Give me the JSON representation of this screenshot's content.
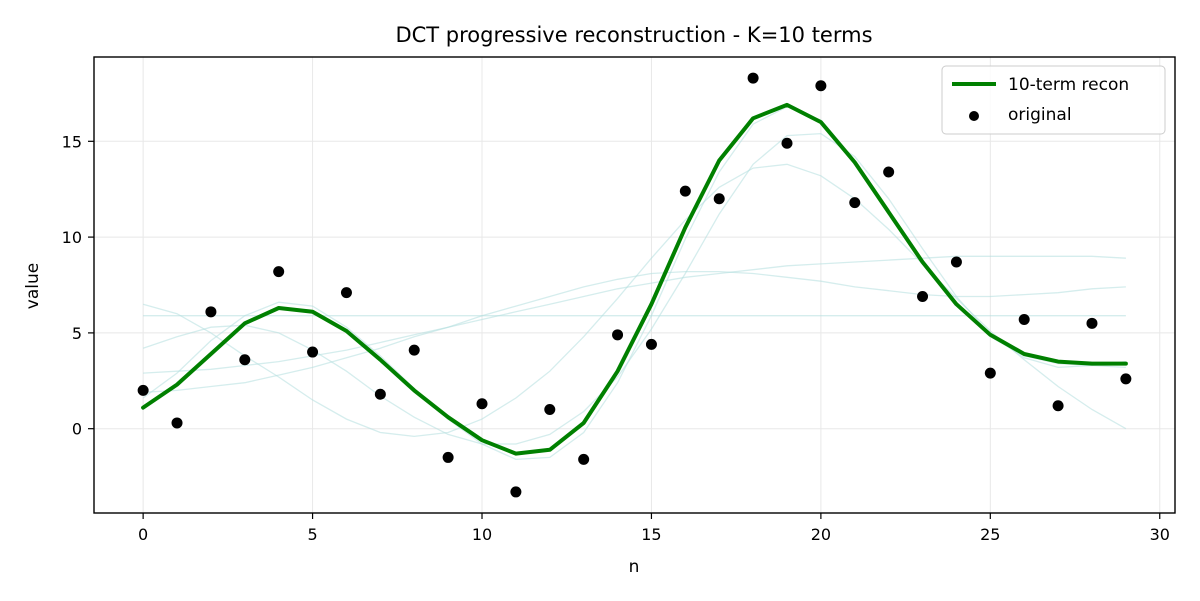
{
  "chart_data": {
    "type": "line",
    "title": "DCT progressive reconstruction - K=10 terms",
    "xlabel": "n",
    "ylabel": "value",
    "xlim": [
      -1.45,
      30.45
    ],
    "ylim": [
      -4.4,
      19.4
    ],
    "xticks": [
      0,
      5,
      10,
      15,
      20,
      25,
      30
    ],
    "yticks": [
      0,
      5,
      10,
      15
    ],
    "grid": true,
    "legend_position": "top-right",
    "x": [
      0,
      1,
      2,
      3,
      4,
      5,
      6,
      7,
      8,
      9,
      10,
      11,
      12,
      13,
      14,
      15,
      16,
      17,
      18,
      19,
      20,
      21,
      22,
      23,
      24,
      25,
      26,
      27,
      28,
      29
    ],
    "series": [
      {
        "name": "10-term recon",
        "kind": "line",
        "color": "#008000",
        "values": [
          1.1,
          2.3,
          3.9,
          5.5,
          6.3,
          6.1,
          5.1,
          3.6,
          2.0,
          0.6,
          -0.6,
          -1.3,
          -1.1,
          0.3,
          3.0,
          6.5,
          10.5,
          14.0,
          16.2,
          16.9,
          16.0,
          13.9,
          11.3,
          8.7,
          6.5,
          4.9,
          3.9,
          3.5,
          3.4,
          3.4
        ]
      },
      {
        "name": "original",
        "kind": "scatter",
        "color": "#000000",
        "values": [
          2.0,
          0.3,
          6.1,
          3.6,
          8.2,
          4.0,
          7.1,
          1.8,
          4.1,
          -1.5,
          1.3,
          -3.3,
          1.0,
          -1.6,
          4.9,
          4.4,
          12.4,
          12.0,
          18.3,
          14.9,
          17.9,
          11.8,
          13.4,
          6.9,
          8.7,
          2.9,
          5.7,
          1.2,
          5.5,
          2.6
        ]
      }
    ],
    "faint_partial_reconstructions": {
      "color": "#b2dfdf",
      "series": [
        [
          5.9,
          5.9,
          5.9,
          5.9,
          5.9,
          5.9,
          5.9,
          5.9,
          5.9,
          5.9,
          5.9,
          5.9,
          5.9,
          5.9,
          5.9,
          5.9,
          5.9,
          5.9,
          5.9,
          5.9,
          5.9,
          5.9,
          5.9,
          5.9,
          5.9,
          5.9,
          5.9,
          5.9,
          5.9,
          5.9
        ],
        [
          2.9,
          3.0,
          3.1,
          3.3,
          3.5,
          3.8,
          4.1,
          4.5,
          4.9,
          5.3,
          5.7,
          6.1,
          6.5,
          6.9,
          7.3,
          7.6,
          7.9,
          8.1,
          8.3,
          8.5,
          8.6,
          8.7,
          8.8,
          8.9,
          9.0,
          9.0,
          9.0,
          9.0,
          9.0,
          8.9
        ],
        [
          1.9,
          2.0,
          2.2,
          2.4,
          2.8,
          3.2,
          3.7,
          4.2,
          4.8,
          5.3,
          5.9,
          6.4,
          6.9,
          7.4,
          7.8,
          8.1,
          8.2,
          8.2,
          8.1,
          7.9,
          7.7,
          7.4,
          7.2,
          7.0,
          6.9,
          6.9,
          7.0,
          7.1,
          7.3,
          7.4
        ],
        [
          6.5,
          6.0,
          5.0,
          3.8,
          2.7,
          1.5,
          0.5,
          -0.2,
          -0.4,
          -0.2,
          0.5,
          1.6,
          3.0,
          4.8,
          6.8,
          8.9,
          10.9,
          12.6,
          13.6,
          13.8,
          13.2,
          12.0,
          10.4,
          8.6,
          6.8,
          5.1,
          3.6,
          2.2,
          1.0,
          0.0
        ],
        [
          4.2,
          4.8,
          5.3,
          5.4,
          5.0,
          4.1,
          3.0,
          1.7,
          0.6,
          -0.3,
          -0.8,
          -0.8,
          -0.3,
          0.9,
          2.7,
          5.2,
          8.1,
          11.2,
          13.8,
          15.3,
          15.4,
          14.2,
          12.0,
          9.4,
          6.9,
          4.9,
          3.7,
          3.2,
          3.3,
          3.5
        ],
        [
          1.6,
          2.9,
          4.6,
          5.9,
          6.6,
          6.4,
          5.3,
          3.8,
          2.1,
          0.5,
          -0.8,
          -1.6,
          -1.5,
          -0.2,
          2.4,
          5.9,
          9.9,
          13.4,
          15.9,
          16.8,
          16.1,
          14.0,
          11.4,
          8.8,
          6.5,
          4.8,
          3.8,
          3.4,
          3.3,
          3.2
        ]
      ]
    }
  }
}
